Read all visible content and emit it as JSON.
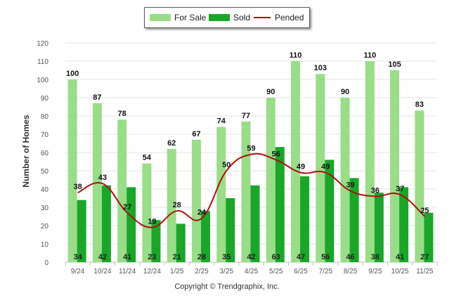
{
  "chart_data": {
    "type": "bar",
    "ylabel": "Number of Homes",
    "ylim": [
      0,
      120
    ],
    "yticks": [
      0,
      10,
      20,
      30,
      40,
      50,
      60,
      70,
      80,
      90,
      100,
      110,
      120
    ],
    "categories": [
      "9/24",
      "10/24",
      "11/24",
      "12/24",
      "1/25",
      "2/25",
      "3/25",
      "4/25",
      "5/25",
      "6/25",
      "7/25",
      "8/25",
      "9/25",
      "10/25",
      "11/25"
    ],
    "series": [
      {
        "name": "For Sale",
        "type": "bar",
        "color": "#99dd88",
        "values": [
          100,
          87,
          78,
          54,
          62,
          67,
          74,
          77,
          90,
          110,
          103,
          90,
          110,
          105,
          83
        ]
      },
      {
        "name": "Sold",
        "type": "bar",
        "color": "#1aa628",
        "values": [
          34,
          42,
          41,
          23,
          21,
          28,
          35,
          42,
          63,
          47,
          56,
          46,
          38,
          41,
          27
        ]
      },
      {
        "name": "Pended",
        "type": "line",
        "color": "#b01010",
        "values": [
          38,
          43,
          27,
          19,
          28,
          24,
          50,
          59,
          56,
          49,
          49,
          39,
          36,
          37,
          25
        ]
      }
    ],
    "legend_position": "top-center",
    "grid": true
  },
  "legend": {
    "for_sale": "For Sale",
    "sold": "Sold",
    "pended": "Pended"
  },
  "footer": {
    "copyright": "Copyright © Trendgraphix, Inc."
  }
}
